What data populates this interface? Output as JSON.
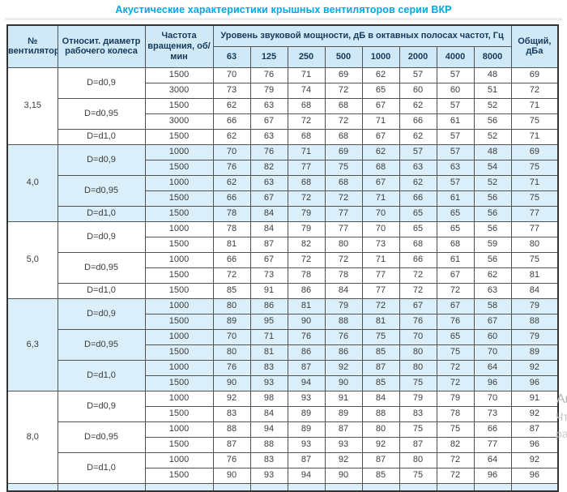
{
  "title": "Акустические характеристики крышных вентиляторов серии ВКР",
  "colors": {
    "title_accent": "#00a7e8",
    "header_bg": "#cfe9f7",
    "highlight_row_bg": "#daeff9",
    "header_text": "#16395c",
    "cell_text": "#3c3c3c"
  },
  "table": {
    "col_fan": "№ вентилятора",
    "col_diameter": "Относит. диаметр рабочего колеса",
    "col_speed": "Частота вращения, об/мин",
    "col_spl": "Уровень звуковой мощности, дБ в октавных полосах частот, Гц",
    "col_total": "Общий, дБа",
    "freq_labels": [
      "63",
      "125",
      "250",
      "500",
      "1000",
      "2000",
      "4000",
      "8000"
    ],
    "groups": [
      {
        "fan": "3,15",
        "highlight": false,
        "diameters": [
          {
            "label": "D=d0,9",
            "rows": [
              {
                "speed": "1500",
                "levels": [
                  70,
                  76,
                  71,
                  69,
                  62,
                  57,
                  57,
                  48
                ],
                "total": 69
              },
              {
                "speed": "3000",
                "levels": [
                  73,
                  79,
                  74,
                  72,
                  65,
                  60,
                  60,
                  51
                ],
                "total": 72
              }
            ]
          },
          {
            "label": "D=d0,95",
            "rows": [
              {
                "speed": "1500",
                "levels": [
                  62,
                  63,
                  68,
                  68,
                  67,
                  62,
                  57,
                  52
                ],
                "total": 71
              },
              {
                "speed": "3000",
                "levels": [
                  66,
                  67,
                  72,
                  72,
                  71,
                  66,
                  61,
                  56
                ],
                "total": 75
              }
            ]
          },
          {
            "label": "D=d1,0",
            "rows": [
              {
                "speed": "1500",
                "levels": [
                  62,
                  63,
                  68,
                  68,
                  67,
                  62,
                  57,
                  52
                ],
                "total": 71
              }
            ]
          }
        ]
      },
      {
        "fan": "4,0",
        "highlight": true,
        "diameters": [
          {
            "label": "D=d0,9",
            "rows": [
              {
                "speed": "1000",
                "levels": [
                  70,
                  76,
                  71,
                  69,
                  62,
                  57,
                  57,
                  48
                ],
                "total": 69
              },
              {
                "speed": "1500",
                "levels": [
                  76,
                  82,
                  77,
                  75,
                  68,
                  63,
                  63,
                  54
                ],
                "total": 75
              }
            ]
          },
          {
            "label": "D=d0,95",
            "rows": [
              {
                "speed": "1000",
                "levels": [
                  62,
                  63,
                  68,
                  68,
                  67,
                  62,
                  57,
                  52
                ],
                "total": 71
              },
              {
                "speed": "1500",
                "levels": [
                  66,
                  67,
                  72,
                  72,
                  71,
                  66,
                  61,
                  56
                ],
                "total": 75
              }
            ]
          },
          {
            "label": "D=d1,0",
            "rows": [
              {
                "speed": "1500",
                "levels": [
                  78,
                  84,
                  79,
                  77,
                  70,
                  65,
                  65,
                  56
                ],
                "total": 77
              }
            ]
          }
        ]
      },
      {
        "fan": "5,0",
        "highlight": false,
        "diameters": [
          {
            "label": "D=d0,9",
            "rows": [
              {
                "speed": "1000",
                "levels": [
                  78,
                  84,
                  79,
                  77,
                  70,
                  65,
                  65,
                  56
                ],
                "total": 77
              },
              {
                "speed": "1500",
                "levels": [
                  81,
                  87,
                  82,
                  80,
                  73,
                  68,
                  68,
                  59
                ],
                "total": 80
              }
            ]
          },
          {
            "label": "D=d0,95",
            "rows": [
              {
                "speed": "1000",
                "levels": [
                  66,
                  67,
                  72,
                  72,
                  71,
                  66,
                  61,
                  56
                ],
                "total": 75
              },
              {
                "speed": "1500",
                "levels": [
                  72,
                  73,
                  78,
                  78,
                  77,
                  72,
                  67,
                  62
                ],
                "total": 81
              }
            ]
          },
          {
            "label": "D=d1,0",
            "rows": [
              {
                "speed": "1500",
                "levels": [
                  85,
                  91,
                  86,
                  84,
                  77,
                  72,
                  72,
                  63
                ],
                "total": 84
              }
            ]
          }
        ]
      },
      {
        "fan": "6,3",
        "highlight": true,
        "diameters": [
          {
            "label": "D=d0,9",
            "rows": [
              {
                "speed": "1000",
                "levels": [
                  80,
                  86,
                  81,
                  79,
                  72,
                  67,
                  67,
                  58
                ],
                "total": 79
              },
              {
                "speed": "1500",
                "levels": [
                  89,
                  95,
                  90,
                  88,
                  81,
                  76,
                  76,
                  67
                ],
                "total": 88
              }
            ]
          },
          {
            "label": "D=d0,95",
            "rows": [
              {
                "speed": "1000",
                "levels": [
                  70,
                  71,
                  76,
                  76,
                  75,
                  70,
                  65,
                  60
                ],
                "total": 79
              },
              {
                "speed": "1500",
                "levels": [
                  80,
                  81,
                  86,
                  86,
                  85,
                  80,
                  75,
                  70
                ],
                "total": 89
              }
            ]
          },
          {
            "label": "D=d1,0",
            "rows": [
              {
                "speed": "1000",
                "levels": [
                  76,
                  83,
                  87,
                  92,
                  87,
                  80,
                  72,
                  64
                ],
                "total": 92
              },
              {
                "speed": "1500",
                "levels": [
                  90,
                  93,
                  94,
                  90,
                  85,
                  75,
                  72,
                  96
                ],
                "total": 96
              }
            ]
          }
        ]
      },
      {
        "fan": "8,0",
        "highlight": false,
        "diameters": [
          {
            "label": "D=d0,9",
            "rows": [
              {
                "speed": "1000",
                "levels": [
                  92,
                  98,
                  93,
                  91,
                  84,
                  79,
                  79,
                  70
                ],
                "total": 91
              },
              {
                "speed": "1500",
                "levels": [
                  83,
                  84,
                  89,
                  89,
                  88,
                  83,
                  78,
                  73
                ],
                "total": 92
              }
            ]
          },
          {
            "label": "D=d0,95",
            "rows": [
              {
                "speed": "1000",
                "levels": [
                  88,
                  94,
                  89,
                  87,
                  80,
                  75,
                  75,
                  66
                ],
                "total": 87
              },
              {
                "speed": "1500",
                "levels": [
                  87,
                  88,
                  93,
                  93,
                  92,
                  87,
                  82,
                  77
                ],
                "total": 96
              }
            ]
          },
          {
            "label": "D=d1,0",
            "rows": [
              {
                "speed": "1000",
                "levels": [
                  76,
                  83,
                  87,
                  92,
                  87,
                  80,
                  72,
                  64
                ],
                "total": 92
              },
              {
                "speed": "1500",
                "levels": [
                  90,
                  93,
                  94,
                  90,
                  85,
                  75,
                  72,
                  96
                ],
                "total": 96
              }
            ]
          }
        ]
      }
    ]
  },
  "watermark": {
    "fragments": [
      "Ак",
      "Чт",
      "ра"
    ]
  }
}
